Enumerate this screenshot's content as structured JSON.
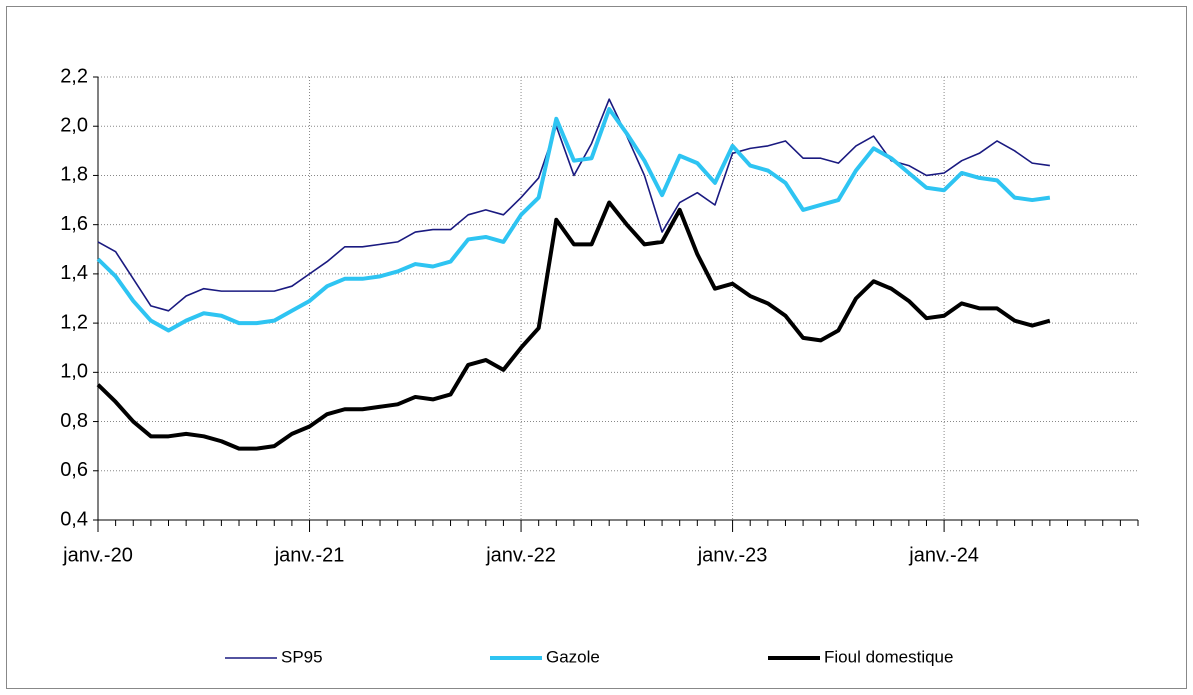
{
  "chart_data": {
    "type": "line",
    "categories": [
      "janv.-20",
      null,
      null,
      null,
      null,
      null,
      null,
      null,
      null,
      null,
      null,
      null,
      "janv.-21",
      null,
      null,
      null,
      null,
      null,
      null,
      null,
      null,
      null,
      null,
      null,
      "janv.-22",
      null,
      null,
      null,
      null,
      null,
      null,
      null,
      null,
      null,
      null,
      null,
      "janv.-23",
      null,
      null,
      null,
      null,
      null,
      null,
      null,
      null,
      null,
      null,
      null,
      "janv.-24",
      null,
      null,
      null,
      null,
      null,
      null,
      null,
      null,
      null,
      null,
      null
    ],
    "series": [
      {
        "name": "SP95",
        "color": "#1a1a80",
        "width": 1.6,
        "values": [
          1.53,
          1.49,
          1.38,
          1.27,
          1.25,
          1.31,
          1.34,
          1.33,
          1.33,
          1.33,
          1.33,
          1.35,
          1.4,
          1.45,
          1.51,
          1.51,
          1.52,
          1.53,
          1.57,
          1.58,
          1.58,
          1.64,
          1.66,
          1.64,
          1.71,
          1.79,
          2.0,
          1.8,
          1.93,
          2.11,
          1.96,
          1.8,
          1.57,
          1.69,
          1.73,
          1.68,
          1.89,
          1.91,
          1.92,
          1.94,
          1.87,
          1.87,
          1.85,
          1.92,
          1.96,
          1.86,
          1.84,
          1.8,
          1.81,
          1.86,
          1.89,
          1.94,
          1.9,
          1.85,
          1.84,
          null,
          null,
          null,
          null,
          null
        ]
      },
      {
        "name": "Gazole",
        "color": "#2ec4f2",
        "width": 4,
        "values": [
          1.46,
          1.39,
          1.29,
          1.21,
          1.17,
          1.21,
          1.24,
          1.23,
          1.2,
          1.2,
          1.21,
          1.25,
          1.29,
          1.35,
          1.38,
          1.38,
          1.39,
          1.41,
          1.44,
          1.43,
          1.45,
          1.54,
          1.55,
          1.53,
          1.64,
          1.71,
          2.03,
          1.86,
          1.87,
          2.07,
          1.97,
          1.86,
          1.72,
          1.88,
          1.85,
          1.77,
          1.92,
          1.84,
          1.82,
          1.77,
          1.66,
          1.68,
          1.7,
          1.82,
          1.91,
          1.87,
          1.81,
          1.75,
          1.74,
          1.81,
          1.79,
          1.78,
          1.71,
          1.7,
          1.71,
          null,
          null,
          null,
          null,
          null
        ]
      },
      {
        "name": "Fioul domestique",
        "color": "#000000",
        "width": 4,
        "values": [
          0.95,
          0.88,
          0.8,
          0.74,
          0.74,
          0.75,
          0.74,
          0.72,
          0.69,
          0.69,
          0.7,
          0.75,
          0.78,
          0.83,
          0.85,
          0.85,
          0.86,
          0.87,
          0.9,
          0.89,
          0.91,
          1.03,
          1.05,
          1.01,
          1.1,
          1.18,
          1.62,
          1.52,
          1.52,
          1.69,
          1.6,
          1.52,
          1.53,
          1.66,
          1.48,
          1.34,
          1.36,
          1.31,
          1.28,
          1.23,
          1.14,
          1.13,
          1.17,
          1.3,
          1.37,
          1.34,
          1.29,
          1.22,
          1.23,
          1.28,
          1.26,
          1.26,
          1.21,
          1.19,
          1.21,
          null,
          null,
          null,
          null,
          null
        ]
      }
    ],
    "ylim": [
      0.4,
      2.2
    ],
    "yticks": [
      {
        "value": 0.4,
        "label": "0,4"
      },
      {
        "value": 0.6,
        "label": "0,6"
      },
      {
        "value": 0.8,
        "label": "0,8"
      },
      {
        "value": 1,
        "label": "1,0"
      },
      {
        "value": 1.2,
        "label": "1,2"
      },
      {
        "value": 1.4,
        "label": "1,4"
      },
      {
        "value": 1.6,
        "label": "1,6"
      },
      {
        "value": 1.8,
        "label": "1,8"
      },
      {
        "value": 2,
        "label": "2,0"
      },
      {
        "value": 2.2,
        "label": "2,2"
      }
    ],
    "grid": true,
    "legend": "bottom"
  }
}
